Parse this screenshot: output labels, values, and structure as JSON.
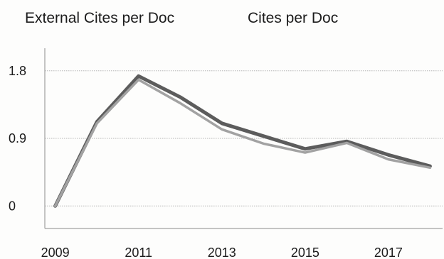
{
  "chart_data": {
    "type": "line",
    "title": "",
    "xlabel": "",
    "ylabel": "",
    "x": [
      2009,
      2010,
      2011,
      2012,
      2013,
      2014,
      2015,
      2016,
      2017,
      2018
    ],
    "x_tick_labels": [
      "2009",
      "2011",
      "2013",
      "2015",
      "2017"
    ],
    "y_tick_labels": [
      "0",
      "0.9",
      "1.8"
    ],
    "y_ticks": [
      0,
      0.9,
      1.8
    ],
    "ylim": [
      -0.3,
      2.1
    ],
    "xlim": [
      2008.75,
      2018.3
    ],
    "grid": "horizontal",
    "legend": "top",
    "series": [
      {
        "name": "External Cites per Doc",
        "color": "#5c5c5c",
        "values": [
          0.0,
          1.12,
          1.73,
          1.45,
          1.1,
          0.93,
          0.76,
          0.86,
          0.68,
          0.53
        ]
      },
      {
        "name": "Cites per Doc",
        "color": "#a2a2a2",
        "values": [
          0.0,
          1.1,
          1.68,
          1.37,
          1.02,
          0.83,
          0.71,
          0.84,
          0.62,
          0.51
        ]
      }
    ]
  }
}
